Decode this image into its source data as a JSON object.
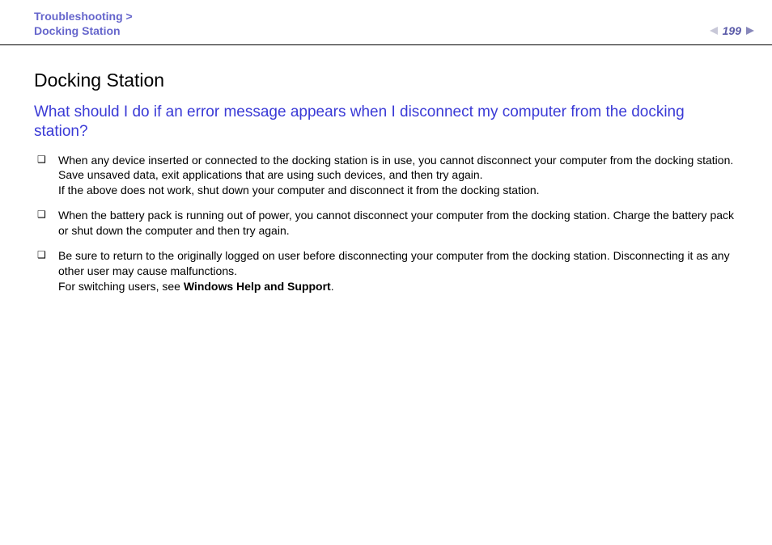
{
  "header": {
    "breadcrumb_line1": "Troubleshooting >",
    "breadcrumb_line2": "Docking Station",
    "page_number": "199"
  },
  "content": {
    "title": "Docking Station",
    "subtitle": "What should I do if an error message appears when I disconnect my computer from the docking station?",
    "bullets": [
      {
        "text": "When any device inserted or connected to the docking station is in use, you cannot disconnect your computer from the docking station. Save unsaved data, exit applications that are using such devices, and then try again.\nIf the above does not work, shut down your computer and disconnect it from the docking station."
      },
      {
        "text": "When the battery pack is running out of power, you cannot disconnect your computer from the docking station. Charge the battery pack or shut down the computer and then try again."
      },
      {
        "text": "Be sure to return to the originally logged on user before disconnecting your computer from the docking station. Disconnecting it as any other user may cause malfunctions.\nFor switching users, see ",
        "bold_suffix": "Windows Help and Support",
        "after_bold": "."
      }
    ]
  },
  "styles": {
    "breadcrumb_color": "#6666cc",
    "subtitle_color": "#3a3ad6",
    "pagenum_color": "#5a5aa8",
    "tri_left_color": "#c8c8d8",
    "tri_right_color": "#8888bb",
    "body_font_size": 14,
    "h1_font_size": 23,
    "h2_font_size": 19
  }
}
